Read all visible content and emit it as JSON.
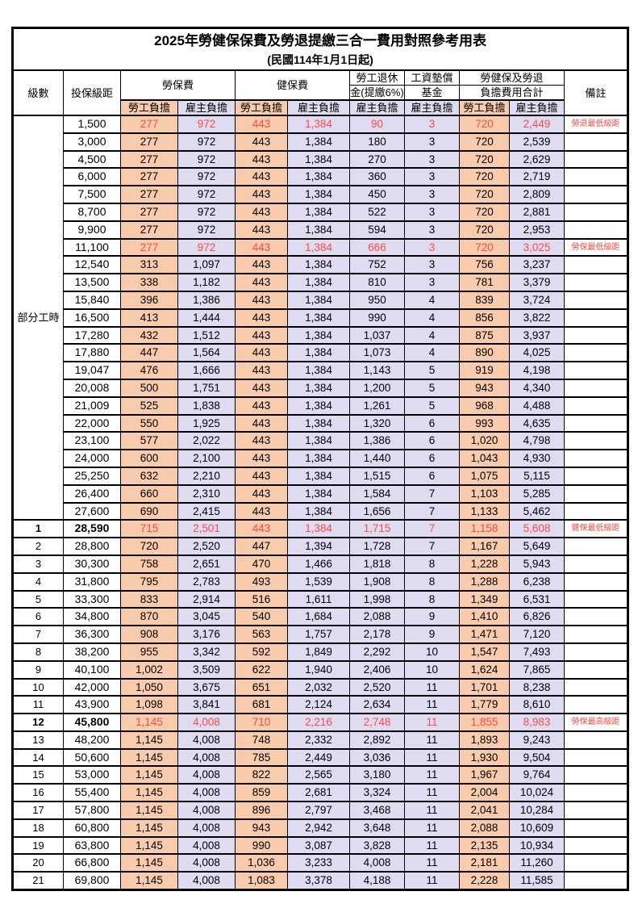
{
  "title": "2025年勞健保保費及勞退提繳三合一費用對照參考用表",
  "subtitle": "(民國114年1月1日起)",
  "colors": {
    "employee_share_bg": "#F8CBAD",
    "employer_share_bg": "#DFDCF2",
    "highlight_text": "#FF4B45",
    "border": "#000000",
    "background": "#FFFFFF"
  },
  "header": {
    "level": "級數",
    "bracket": "投保級距",
    "labor": "勞保費",
    "health": "健保費",
    "pension_line1": "勞工退休",
    "pension_line2": "金(提繳6%)",
    "fund_line1": "工資墊償",
    "fund_line2": "基金",
    "total_line1": "勞健保及勞退",
    "total_line2": "負擔費用合計",
    "note": "備註",
    "employee_share": "勞工負擔",
    "employer_share": "雇主負擔"
  },
  "part_time_label": "部分工時",
  "part_time_span": 23,
  "rows": [
    {
      "level": "",
      "bracket": "1,500",
      "values": [
        "277",
        "972",
        "443",
        "1,384",
        "90",
        "3",
        "720",
        "2,449"
      ],
      "note": "勞退最低級距",
      "highlight": true,
      "bold": false
    },
    {
      "level": "",
      "bracket": "3,000",
      "values": [
        "277",
        "972",
        "443",
        "1,384",
        "180",
        "3",
        "720",
        "2,539"
      ],
      "note": "",
      "highlight": false,
      "bold": false
    },
    {
      "level": "",
      "bracket": "4,500",
      "values": [
        "277",
        "972",
        "443",
        "1,384",
        "270",
        "3",
        "720",
        "2,629"
      ],
      "note": "",
      "highlight": false,
      "bold": false
    },
    {
      "level": "",
      "bracket": "6,000",
      "values": [
        "277",
        "972",
        "443",
        "1,384",
        "360",
        "3",
        "720",
        "2,719"
      ],
      "note": "",
      "highlight": false,
      "bold": false
    },
    {
      "level": "",
      "bracket": "7,500",
      "values": [
        "277",
        "972",
        "443",
        "1,384",
        "450",
        "3",
        "720",
        "2,809"
      ],
      "note": "",
      "highlight": false,
      "bold": false
    },
    {
      "level": "",
      "bracket": "8,700",
      "values": [
        "277",
        "972",
        "443",
        "1,384",
        "522",
        "3",
        "720",
        "2,881"
      ],
      "note": "",
      "highlight": false,
      "bold": false
    },
    {
      "level": "",
      "bracket": "9,900",
      "values": [
        "277",
        "972",
        "443",
        "1,384",
        "594",
        "3",
        "720",
        "2,953"
      ],
      "note": "",
      "highlight": false,
      "bold": false
    },
    {
      "level": "",
      "bracket": "11,100",
      "values": [
        "277",
        "972",
        "443",
        "1,384",
        "666",
        "3",
        "720",
        "3,025"
      ],
      "note": "勞保最低級距",
      "highlight": true,
      "bold": false
    },
    {
      "level": "",
      "bracket": "12,540",
      "values": [
        "313",
        "1,097",
        "443",
        "1,384",
        "752",
        "3",
        "756",
        "3,237"
      ],
      "note": "",
      "highlight": false,
      "bold": false
    },
    {
      "level": "",
      "bracket": "13,500",
      "values": [
        "338",
        "1,182",
        "443",
        "1,384",
        "810",
        "3",
        "781",
        "3,379"
      ],
      "note": "",
      "highlight": false,
      "bold": false
    },
    {
      "level": "",
      "bracket": "15,840",
      "values": [
        "396",
        "1,386",
        "443",
        "1,384",
        "950",
        "4",
        "839",
        "3,724"
      ],
      "note": "",
      "highlight": false,
      "bold": false
    },
    {
      "level": "",
      "bracket": "16,500",
      "values": [
        "413",
        "1,444",
        "443",
        "1,384",
        "990",
        "4",
        "856",
        "3,822"
      ],
      "note": "",
      "highlight": false,
      "bold": false
    },
    {
      "level": "",
      "bracket": "17,280",
      "values": [
        "432",
        "1,512",
        "443",
        "1,384",
        "1,037",
        "4",
        "875",
        "3,937"
      ],
      "note": "",
      "highlight": false,
      "bold": false
    },
    {
      "level": "",
      "bracket": "17,880",
      "values": [
        "447",
        "1,564",
        "443",
        "1,384",
        "1,073",
        "4",
        "890",
        "4,025"
      ],
      "note": "",
      "highlight": false,
      "bold": false
    },
    {
      "level": "",
      "bracket": "19,047",
      "values": [
        "476",
        "1,666",
        "443",
        "1,384",
        "1,143",
        "5",
        "919",
        "4,198"
      ],
      "note": "",
      "highlight": false,
      "bold": false
    },
    {
      "level": "",
      "bracket": "20,008",
      "values": [
        "500",
        "1,751",
        "443",
        "1,384",
        "1,200",
        "5",
        "943",
        "4,340"
      ],
      "note": "",
      "highlight": false,
      "bold": false
    },
    {
      "level": "",
      "bracket": "21,009",
      "values": [
        "525",
        "1,838",
        "443",
        "1,384",
        "1,261",
        "5",
        "968",
        "4,488"
      ],
      "note": "",
      "highlight": false,
      "bold": false
    },
    {
      "level": "",
      "bracket": "22,000",
      "values": [
        "550",
        "1,925",
        "443",
        "1,384",
        "1,320",
        "6",
        "993",
        "4,635"
      ],
      "note": "",
      "highlight": false,
      "bold": false
    },
    {
      "level": "",
      "bracket": "23,100",
      "values": [
        "577",
        "2,022",
        "443",
        "1,384",
        "1,386",
        "6",
        "1,020",
        "4,798"
      ],
      "note": "",
      "highlight": false,
      "bold": false
    },
    {
      "level": "",
      "bracket": "24,000",
      "values": [
        "600",
        "2,100",
        "443",
        "1,384",
        "1,440",
        "6",
        "1,043",
        "4,930"
      ],
      "note": "",
      "highlight": false,
      "bold": false
    },
    {
      "level": "",
      "bracket": "25,250",
      "values": [
        "632",
        "2,210",
        "443",
        "1,384",
        "1,515",
        "6",
        "1,075",
        "5,115"
      ],
      "note": "",
      "highlight": false,
      "bold": false
    },
    {
      "level": "",
      "bracket": "26,400",
      "values": [
        "660",
        "2,310",
        "443",
        "1,384",
        "1,584",
        "7",
        "1,103",
        "5,285"
      ],
      "note": "",
      "highlight": false,
      "bold": false
    },
    {
      "level": "",
      "bracket": "27,600",
      "values": [
        "690",
        "2,415",
        "443",
        "1,384",
        "1,656",
        "7",
        "1,133",
        "5,462"
      ],
      "note": "",
      "highlight": false,
      "bold": false
    },
    {
      "level": "1",
      "bracket": "28,590",
      "values": [
        "715",
        "2,501",
        "443",
        "1,384",
        "1,715",
        "7",
        "1,158",
        "5,608"
      ],
      "note": "健保最低級距",
      "highlight": true,
      "bold": true
    },
    {
      "level": "2",
      "bracket": "28,800",
      "values": [
        "720",
        "2,520",
        "447",
        "1,394",
        "1,728",
        "7",
        "1,167",
        "5,649"
      ],
      "note": "",
      "highlight": false,
      "bold": false
    },
    {
      "level": "3",
      "bracket": "30,300",
      "values": [
        "758",
        "2,651",
        "470",
        "1,466",
        "1,818",
        "8",
        "1,228",
        "5,943"
      ],
      "note": "",
      "highlight": false,
      "bold": false
    },
    {
      "level": "4",
      "bracket": "31,800",
      "values": [
        "795",
        "2,783",
        "493",
        "1,539",
        "1,908",
        "8",
        "1,288",
        "6,238"
      ],
      "note": "",
      "highlight": false,
      "bold": false
    },
    {
      "level": "5",
      "bracket": "33,300",
      "values": [
        "833",
        "2,914",
        "516",
        "1,611",
        "1,998",
        "8",
        "1,349",
        "6,531"
      ],
      "note": "",
      "highlight": false,
      "bold": false
    },
    {
      "level": "6",
      "bracket": "34,800",
      "values": [
        "870",
        "3,045",
        "540",
        "1,684",
        "2,088",
        "9",
        "1,410",
        "6,826"
      ],
      "note": "",
      "highlight": false,
      "bold": false
    },
    {
      "level": "7",
      "bracket": "36,300",
      "values": [
        "908",
        "3,176",
        "563",
        "1,757",
        "2,178",
        "9",
        "1,471",
        "7,120"
      ],
      "note": "",
      "highlight": false,
      "bold": false
    },
    {
      "level": "8",
      "bracket": "38,200",
      "values": [
        "955",
        "3,342",
        "592",
        "1,849",
        "2,292",
        "10",
        "1,547",
        "7,493"
      ],
      "note": "",
      "highlight": false,
      "bold": false
    },
    {
      "level": "9",
      "bracket": "40,100",
      "values": [
        "1,002",
        "3,509",
        "622",
        "1,940",
        "2,406",
        "10",
        "1,624",
        "7,865"
      ],
      "note": "",
      "highlight": false,
      "bold": false
    },
    {
      "level": "10",
      "bracket": "42,000",
      "values": [
        "1,050",
        "3,675",
        "651",
        "2,032",
        "2,520",
        "11",
        "1,701",
        "8,238"
      ],
      "note": "",
      "highlight": false,
      "bold": false
    },
    {
      "level": "11",
      "bracket": "43,900",
      "values": [
        "1,098",
        "3,841",
        "681",
        "2,124",
        "2,634",
        "11",
        "1,779",
        "8,610"
      ],
      "note": "",
      "highlight": false,
      "bold": false
    },
    {
      "level": "12",
      "bracket": "45,800",
      "values": [
        "1,145",
        "4,008",
        "710",
        "2,216",
        "2,748",
        "11",
        "1,855",
        "8,983"
      ],
      "note": "勞保最高級距",
      "highlight": true,
      "bold": true
    },
    {
      "level": "13",
      "bracket": "48,200",
      "values": [
        "1,145",
        "4,008",
        "748",
        "2,332",
        "2,892",
        "11",
        "1,893",
        "9,243"
      ],
      "note": "",
      "highlight": false,
      "bold": false
    },
    {
      "level": "14",
      "bracket": "50,600",
      "values": [
        "1,145",
        "4,008",
        "785",
        "2,449",
        "3,036",
        "11",
        "1,930",
        "9,504"
      ],
      "note": "",
      "highlight": false,
      "bold": false
    },
    {
      "level": "15",
      "bracket": "53,000",
      "values": [
        "1,145",
        "4,008",
        "822",
        "2,565",
        "3,180",
        "11",
        "1,967",
        "9,764"
      ],
      "note": "",
      "highlight": false,
      "bold": false
    },
    {
      "level": "16",
      "bracket": "55,400",
      "values": [
        "1,145",
        "4,008",
        "859",
        "2,681",
        "3,324",
        "11",
        "2,004",
        "10,024"
      ],
      "note": "",
      "highlight": false,
      "bold": false
    },
    {
      "level": "17",
      "bracket": "57,800",
      "values": [
        "1,145",
        "4,008",
        "896",
        "2,797",
        "3,468",
        "11",
        "2,041",
        "10,284"
      ],
      "note": "",
      "highlight": false,
      "bold": false
    },
    {
      "level": "18",
      "bracket": "60,800",
      "values": [
        "1,145",
        "4,008",
        "943",
        "2,942",
        "3,648",
        "11",
        "2,088",
        "10,609"
      ],
      "note": "",
      "highlight": false,
      "bold": false
    },
    {
      "level": "19",
      "bracket": "63,800",
      "values": [
        "1,145",
        "4,008",
        "990",
        "3,087",
        "3,828",
        "11",
        "2,135",
        "10,934"
      ],
      "note": "",
      "highlight": false,
      "bold": false
    },
    {
      "level": "20",
      "bracket": "66,800",
      "values": [
        "1,145",
        "4,008",
        "1,036",
        "3,233",
        "4,008",
        "11",
        "2,181",
        "11,260"
      ],
      "note": "",
      "highlight": false,
      "bold": false
    },
    {
      "level": "21",
      "bracket": "69,800",
      "values": [
        "1,145",
        "4,008",
        "1,083",
        "3,378",
        "4,188",
        "11",
        "2,228",
        "11,585"
      ],
      "note": "",
      "highlight": false,
      "bold": false
    }
  ]
}
